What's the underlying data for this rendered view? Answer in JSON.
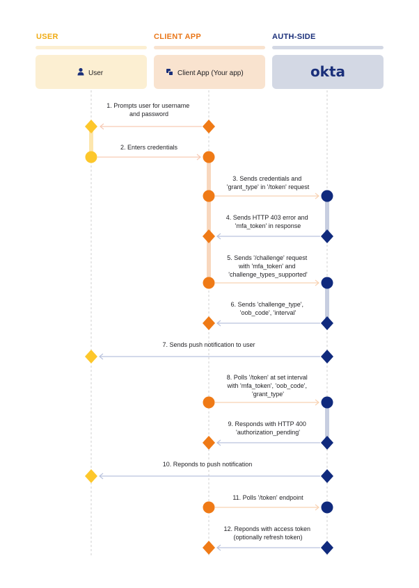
{
  "lanes": [
    {
      "title": "USER",
      "color": "#f0ab13",
      "band": "#fcefd2",
      "actor_label": "User",
      "actor_icon": "person-icon"
    },
    {
      "title": "CLIENT APP",
      "color": "#e9771a",
      "band": "#f9e3cf",
      "actor_label": "Client App (Your app)",
      "actor_icon": "app-windows-icon"
    },
    {
      "title": "AUTH-SIDE",
      "color": "#1a2f7a",
      "band": "#d3d8e4",
      "actor_label": "okta",
      "actor_icon": "okta-logo"
    }
  ],
  "colors": {
    "user_node": "#fdc72b",
    "client_node": "#ef7a16",
    "auth_node": "#102a7d",
    "arrow_client_user": "#f6c9b4",
    "arrow_client_auth": "#f8d2b2",
    "arrow_auth_client": "#b9c2dd",
    "lifeline": "#cfcfcf",
    "act_user": "#fde6ad",
    "act_client": "#f8d7bd",
    "act_auth": "#c7cee0"
  },
  "messages": [
    {
      "lines": [
        "1. Prompts user for username",
        "and password"
      ]
    },
    {
      "lines": [
        "2. Enters credentials"
      ]
    },
    {
      "lines": [
        "3. Sends credentials and",
        "'grant_type' in '/token' request"
      ]
    },
    {
      "lines": [
        "4. Sends HTTP 403 error and",
        "'mfa_token' in response"
      ]
    },
    {
      "lines": [
        "5. Sends '/challenge' request",
        "with 'mfa_token' and",
        "'challenge_types_supported'"
      ]
    },
    {
      "lines": [
        "6. Sends 'challenge_type',",
        "'oob_code', 'interval'"
      ]
    },
    {
      "lines": [
        "7. Sends push notification to user"
      ]
    },
    {
      "lines": [
        "8. Polls '/token' at set interval",
        "with 'mfa_token', 'oob_code',",
        "'grant_type'"
      ]
    },
    {
      "lines": [
        "9. Responds with HTTP 400",
        "'authorization_pending'"
      ]
    },
    {
      "lines": [
        "10. Reponds to push notification"
      ]
    },
    {
      "lines": [
        "11. Polls '/token' endpoint"
      ]
    },
    {
      "lines": [
        "12. Reponds with access token",
        "(optionally refresh token)"
      ]
    }
  ]
}
